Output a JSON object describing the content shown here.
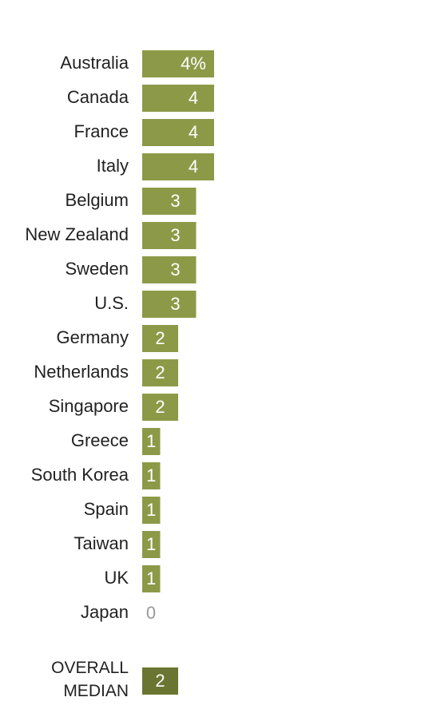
{
  "chart_data": {
    "type": "bar",
    "orientation": "horizontal",
    "categories": [
      "Australia",
      "Canada",
      "France",
      "Italy",
      "Belgium",
      "New Zealand",
      "Sweden",
      "U.S.",
      "Germany",
      "Netherlands",
      "Singapore",
      "Greece",
      "South Korea",
      "Spain",
      "Taiwan",
      "UK",
      "Japan"
    ],
    "values": [
      4,
      4,
      4,
      4,
      3,
      3,
      3,
      3,
      2,
      2,
      2,
      1,
      1,
      1,
      1,
      1,
      0
    ],
    "value_labels": [
      "4%",
      "4",
      "4",
      "4",
      "3",
      "3",
      "3",
      "3",
      "2",
      "2",
      "2",
      "1",
      "1",
      "1",
      "1",
      "1",
      "0"
    ],
    "color": "#8c9a48",
    "median": {
      "label": "OVERALL MEDIAN",
      "value": 2,
      "value_label": "2",
      "color": "#6b7532"
    }
  }
}
